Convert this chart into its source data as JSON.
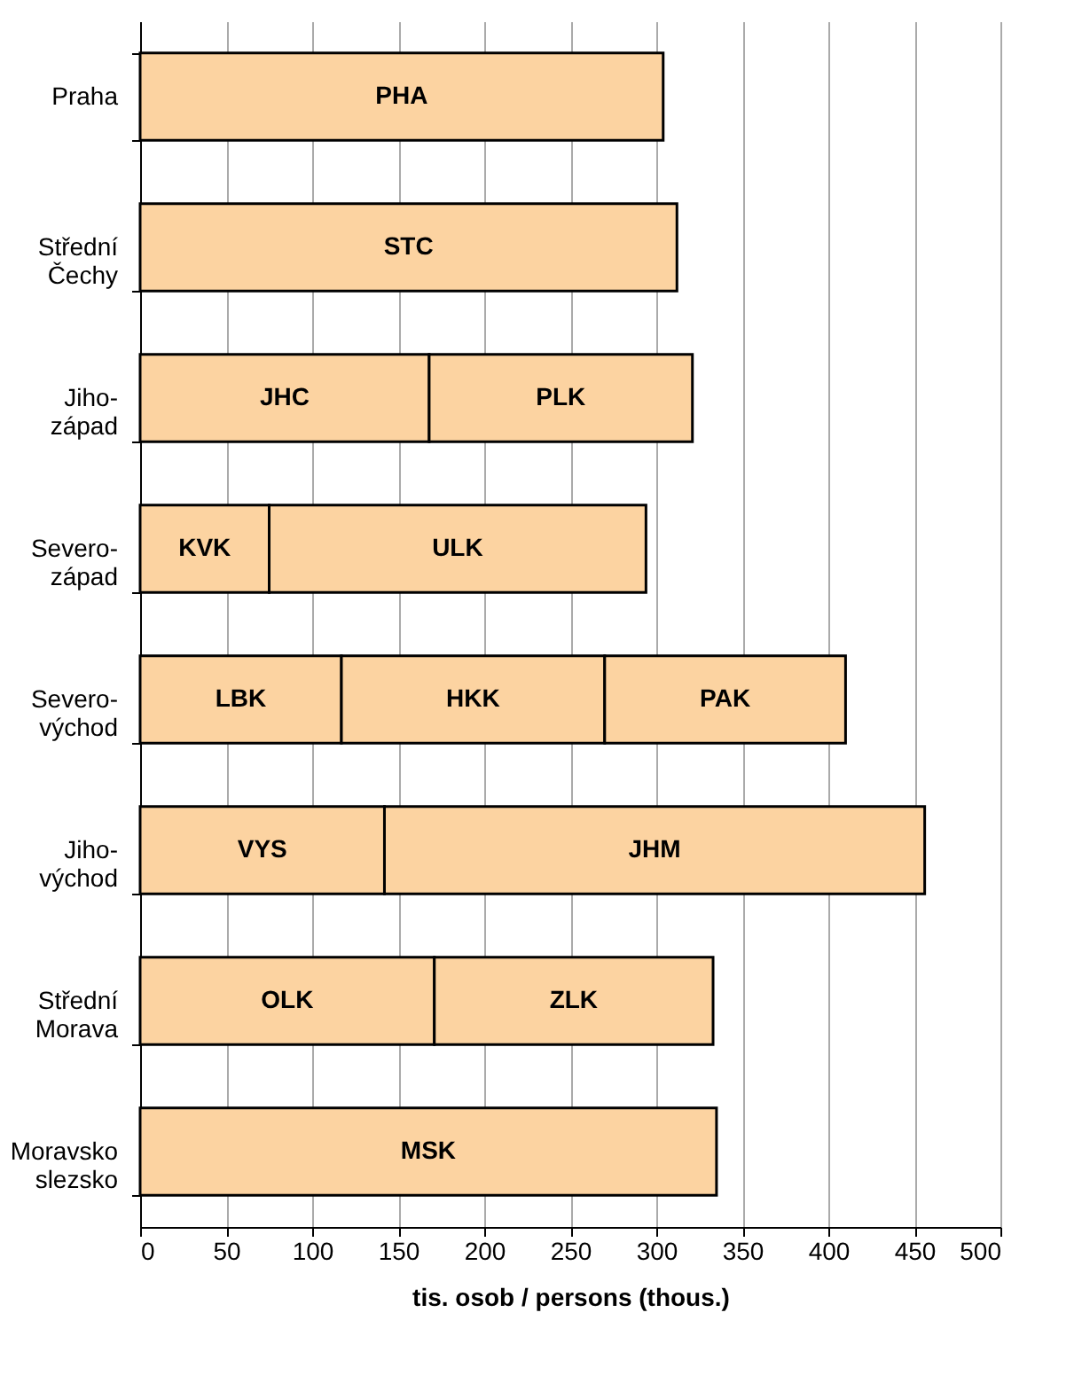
{
  "chart_data": {
    "type": "bar",
    "orientation": "horizontal",
    "stacked": true,
    "xlabel": "tis. osob / persons (thous.)",
    "categories": [
      "Praha",
      "Střední\nČechy",
      "Jiho-\nzápad",
      "Severo-\nzápad",
      "Severo-\nvýchod",
      "Jiho-\nvýchod",
      "Střední\nMorava",
      "Moravsko\nslezsko"
    ],
    "series": [
      {
        "color": "#fcd3a1",
        "values": [
          304,
          312,
          168,
          75,
          117,
          142,
          171,
          335
        ],
        "value_labels": [
          "PHA",
          "STC",
          "JHC",
          "KVK",
          "LBK",
          "VYS",
          "OLK",
          "MSK"
        ]
      },
      {
        "color": "#fcd3a1",
        "values": [
          null,
          null,
          153,
          219,
          153,
          314,
          162,
          null
        ],
        "value_labels": [
          null,
          null,
          "PLK",
          "ULK",
          "HKK",
          "JHM",
          "ZLK",
          null
        ]
      },
      {
        "color": "#fcd3a1",
        "values": [
          null,
          null,
          null,
          null,
          140,
          null,
          null,
          null
        ],
        "value_labels": [
          null,
          null,
          null,
          null,
          "PAK",
          null,
          null,
          null
        ]
      }
    ],
    "xlim": [
      0,
      500
    ],
    "xticks": [
      0,
      50,
      100,
      150,
      200,
      250,
      300,
      350,
      400,
      450,
      500
    ],
    "grid": "x",
    "legend": false
  }
}
